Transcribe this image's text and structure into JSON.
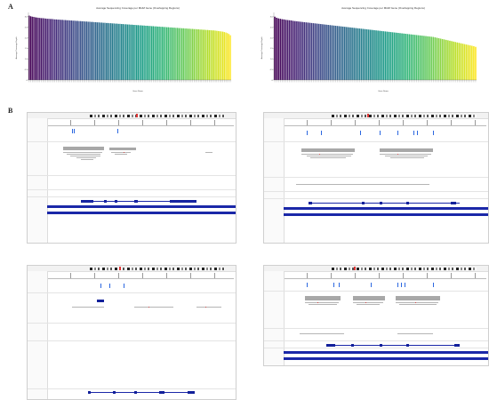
{
  "labels": {
    "panel_a": "A",
    "panel_b": "B"
  },
  "chart_data": [
    {
      "type": "bar",
      "title": "Average Sequencing Coverage per MHM Gene (Overlapping Regions)",
      "xlabel": "Gene Name",
      "ylabel": "Average Coverage Depth",
      "yticks": [
        "0",
        "0.5",
        "1.0",
        "1.5",
        "2.0",
        "2.5",
        "3.0"
      ],
      "ylim": [
        0,
        3.2
      ],
      "colormap": "viridis",
      "values": [
        3.05,
        3.02,
        3.0,
        2.99,
        2.97,
        2.96,
        2.95,
        2.94,
        2.93,
        2.93,
        2.92,
        2.91,
        2.9,
        2.9,
        2.89,
        2.89,
        2.88,
        2.87,
        2.87,
        2.86,
        2.86,
        2.85,
        2.85,
        2.84,
        2.84,
        2.83,
        2.83,
        2.82,
        2.82,
        2.81,
        2.81,
        2.8,
        2.8,
        2.79,
        2.79,
        2.78,
        2.78,
        2.77,
        2.77,
        2.76,
        2.76,
        2.75,
        2.75,
        2.74,
        2.74,
        2.73,
        2.73,
        2.72,
        2.72,
        2.71,
        2.71,
        2.7,
        2.7,
        2.69,
        2.69,
        2.68,
        2.68,
        2.67,
        2.67,
        2.66,
        2.66,
        2.65,
        2.65,
        2.64,
        2.64,
        2.63,
        2.63,
        2.62,
        2.62,
        2.61,
        2.61,
        2.6,
        2.6,
        2.59,
        2.59,
        2.58,
        2.58,
        2.57,
        2.57,
        2.56,
        2.56,
        2.55,
        2.55,
        2.54,
        2.54,
        2.53,
        2.53,
        2.52,
        2.52,
        2.51,
        2.51,
        2.5,
        2.5,
        2.49,
        2.49,
        2.48,
        2.48,
        2.47,
        2.47,
        2.46,
        2.46,
        2.45,
        2.45,
        2.44,
        2.44,
        2.43,
        2.43,
        2.42,
        2.42,
        2.41,
        2.41,
        2.4,
        2.4,
        2.39,
        2.39,
        2.38,
        2.38,
        2.37,
        2.37,
        2.36,
        2.36,
        2.35,
        2.35,
        2.34,
        2.33,
        2.32,
        2.31,
        2.3,
        2.29,
        2.27,
        2.25,
        2.22,
        2.18,
        2.12
      ]
    },
    {
      "type": "bar",
      "title": "Average Sequencing Coverage per MHM Gene (Overlapping Regions)",
      "xlabel": "Gene Name",
      "ylabel": "Average Coverage Depth",
      "yticks": [
        "0",
        "0.5",
        "1.0",
        "1.5",
        "2.0",
        "2.5",
        "3.0"
      ],
      "ylim": [
        0,
        3.2
      ],
      "colormap": "viridis",
      "values": [
        3.0,
        2.95,
        2.92,
        2.9,
        2.88,
        2.87,
        2.85,
        2.84,
        2.83,
        2.82,
        2.8,
        2.79,
        2.78,
        2.77,
        2.76,
        2.75,
        2.74,
        2.73,
        2.72,
        2.71,
        2.7,
        2.69,
        2.68,
        2.67,
        2.66,
        2.65,
        2.64,
        2.63,
        2.62,
        2.61,
        2.6,
        2.59,
        2.58,
        2.57,
        2.56,
        2.55,
        2.54,
        2.53,
        2.52,
        2.51,
        2.5,
        2.49,
        2.48,
        2.47,
        2.46,
        2.45,
        2.44,
        2.43,
        2.42,
        2.41,
        2.4,
        2.39,
        2.38,
        2.37,
        2.36,
        2.35,
        2.34,
        2.33,
        2.32,
        2.31,
        2.3,
        2.29,
        2.28,
        2.27,
        2.26,
        2.25,
        2.24,
        2.23,
        2.22,
        2.21,
        2.2,
        2.19,
        2.18,
        2.17,
        2.16,
        2.15,
        2.14,
        2.13,
        2.12,
        2.11,
        2.1,
        2.09,
        2.08,
        2.07,
        2.06,
        2.05,
        2.04,
        2.02,
        2.0,
        1.98,
        1.96,
        1.94,
        1.92,
        1.9,
        1.88,
        1.86,
        1.84,
        1.82,
        1.8,
        1.78,
        1.76,
        1.74,
        1.72,
        1.7,
        1.68,
        1.66,
        1.64,
        1.62,
        1.6,
        1.57
      ]
    }
  ],
  "igv_colors": {
    "gene": "#1b28a8",
    "variant": "#2b67e0",
    "read": "#b5b5b5",
    "mismatch": "#d64a4a"
  }
}
